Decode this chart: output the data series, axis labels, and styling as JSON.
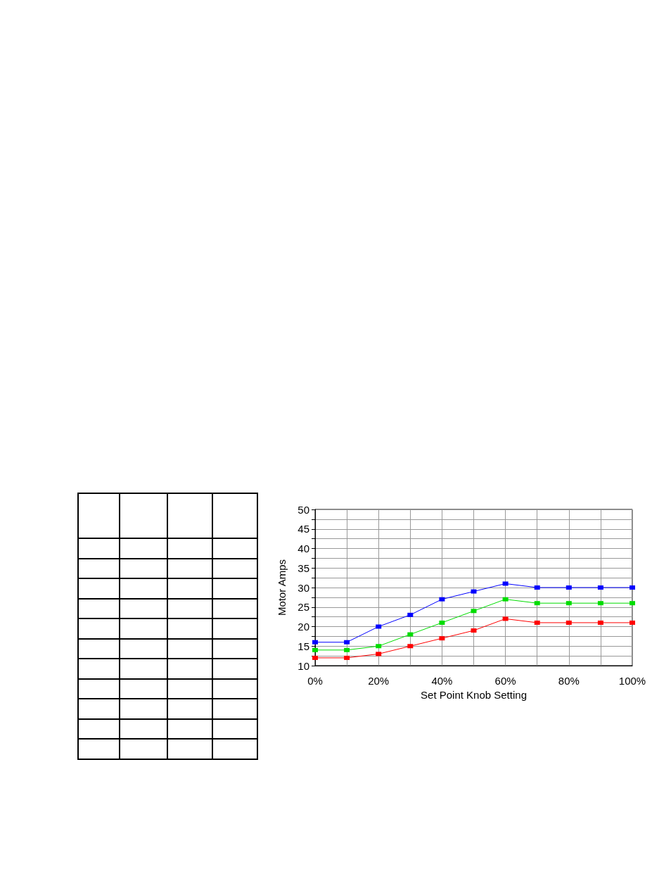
{
  "chart_data": {
    "type": "line",
    "xlabel": "Set Point Knob Setting",
    "ylabel": "Motor Amps",
    "x": [
      0,
      10,
      20,
      30,
      40,
      50,
      60,
      70,
      80,
      90,
      100
    ],
    "series": [
      {
        "color": "#0000ff",
        "values": [
          16,
          16,
          20,
          23,
          27,
          29,
          31,
          30,
          30,
          30,
          30
        ]
      },
      {
        "color": "#00dd00",
        "values": [
          14,
          14,
          15,
          18,
          21,
          24,
          27,
          26,
          26,
          26,
          26
        ]
      },
      {
        "color": "#ff0000",
        "values": [
          12,
          12,
          13,
          15,
          17,
          19,
          22,
          21,
          21,
          21,
          21
        ]
      }
    ],
    "xlim": [
      0,
      100
    ],
    "xticks": [
      {
        "value": 0,
        "label": "0%"
      },
      {
        "value": 10,
        "label": null
      },
      {
        "value": 20,
        "label": "20%"
      },
      {
        "value": 30,
        "label": null
      },
      {
        "value": 40,
        "label": "40%"
      },
      {
        "value": 50,
        "label": null
      },
      {
        "value": 60,
        "label": "60%"
      },
      {
        "value": 70,
        "label": null
      },
      {
        "value": 80,
        "label": "80%"
      },
      {
        "value": 90,
        "label": null
      },
      {
        "value": 100,
        "label": "100%"
      }
    ],
    "ylim": [
      10,
      50
    ],
    "yticks": [
      10,
      {
        "value": 12.5,
        "label": null
      },
      15,
      {
        "value": 17.5,
        "label": null
      },
      20,
      {
        "value": 22.5,
        "label": null
      },
      25,
      {
        "value": 27.5,
        "label": null
      },
      30,
      {
        "value": 32.5,
        "label": null
      },
      35,
      {
        "value": 37.5,
        "label": null
      },
      40,
      {
        "value": 42.5,
        "label": null
      },
      45,
      {
        "value": 47.5,
        "label": null
      },
      50
    ],
    "grid": true,
    "marker": "square",
    "line_style": "solid"
  }
}
